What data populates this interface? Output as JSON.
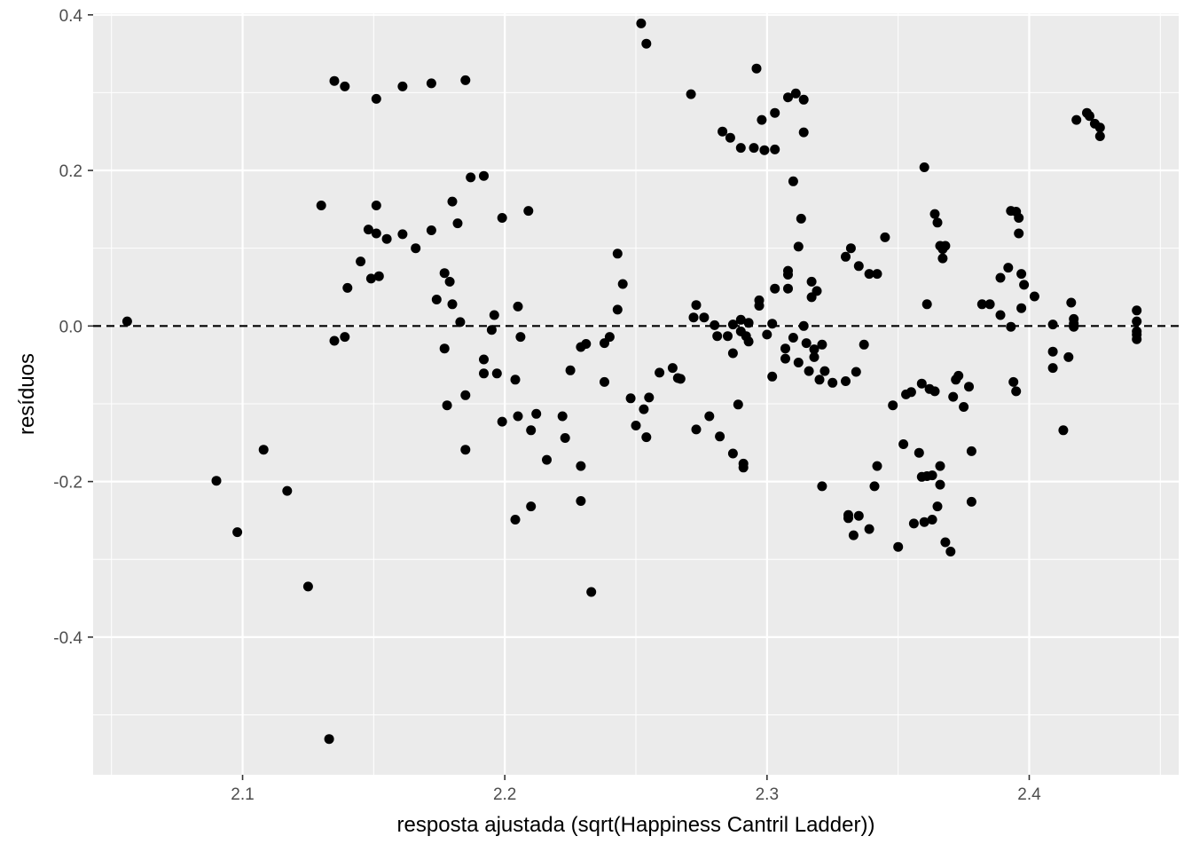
{
  "chart_data": {
    "type": "scatter",
    "xlabel": "resposta ajustada (sqrt(Happiness Cantril Ladder))",
    "ylabel": "resíduos",
    "xlim": [
      2.043,
      2.457
    ],
    "ylim": [
      -0.577,
      0.402
    ],
    "x_ticks": [
      2.1,
      2.2,
      2.3,
      2.4
    ],
    "x_tick_labels": [
      "2.1",
      "2.2",
      "2.3",
      "2.4"
    ],
    "y_ticks": [
      0.4,
      0.2,
      0.0,
      -0.2,
      -0.4
    ],
    "y_tick_labels": [
      "0.4",
      "0.2",
      "0.0",
      "-0.2",
      "-0.4"
    ],
    "grid": true,
    "reference_line": {
      "y": 0,
      "style": "dashed"
    },
    "colors": {
      "panel": "#ebebeb",
      "grid": "#ffffff",
      "points": "#000000",
      "reference_line": "#000000"
    },
    "points": [
      [
        2.056,
        0.006
      ],
      [
        2.09,
        -0.199
      ],
      [
        2.098,
        -0.265
      ],
      [
        2.108,
        -0.159
      ],
      [
        2.117,
        -0.212
      ],
      [
        2.125,
        -0.335
      ],
      [
        2.13,
        0.155
      ],
      [
        2.133,
        -0.531
      ],
      [
        2.135,
        0.315
      ],
      [
        2.135,
        -0.019
      ],
      [
        2.139,
        0.308
      ],
      [
        2.139,
        -0.014
      ],
      [
        2.14,
        0.049
      ],
      [
        2.145,
        0.083
      ],
      [
        2.148,
        0.124
      ],
      [
        2.149,
        0.061
      ],
      [
        2.151,
        0.292
      ],
      [
        2.151,
        0.119
      ],
      [
        2.151,
        0.155
      ],
      [
        2.152,
        0.064
      ],
      [
        2.155,
        0.112
      ],
      [
        2.161,
        0.118
      ],
      [
        2.161,
        0.308
      ],
      [
        2.166,
        0.1
      ],
      [
        2.172,
        0.312
      ],
      [
        2.172,
        0.123
      ],
      [
        2.174,
        0.034
      ],
      [
        2.177,
        0.068
      ],
      [
        2.177,
        -0.029
      ],
      [
        2.178,
        -0.102
      ],
      [
        2.179,
        0.057
      ],
      [
        2.18,
        0.16
      ],
      [
        2.18,
        0.028
      ],
      [
        2.182,
        0.132
      ],
      [
        2.183,
        0.005
      ],
      [
        2.185,
        0.316
      ],
      [
        2.185,
        -0.089
      ],
      [
        2.185,
        -0.159
      ],
      [
        2.187,
        0.191
      ],
      [
        2.192,
        0.193
      ],
      [
        2.192,
        -0.043
      ],
      [
        2.192,
        -0.061
      ],
      [
        2.195,
        -0.005
      ],
      [
        2.196,
        0.014
      ],
      [
        2.197,
        -0.061
      ],
      [
        2.199,
        -0.123
      ],
      [
        2.199,
        0.139
      ],
      [
        2.204,
        -0.069
      ],
      [
        2.204,
        -0.249
      ],
      [
        2.205,
        -0.116
      ],
      [
        2.205,
        0.025
      ],
      [
        2.206,
        -0.014
      ],
      [
        2.209,
        0.148
      ],
      [
        2.21,
        -0.134
      ],
      [
        2.21,
        -0.232
      ],
      [
        2.212,
        -0.113
      ],
      [
        2.216,
        -0.172
      ],
      [
        2.222,
        -0.116
      ],
      [
        2.223,
        -0.144
      ],
      [
        2.225,
        -0.057
      ],
      [
        2.229,
        -0.225
      ],
      [
        2.229,
        -0.18
      ],
      [
        2.229,
        -0.027
      ],
      [
        2.231,
        -0.023
      ],
      [
        2.233,
        -0.342
      ],
      [
        2.238,
        -0.022
      ],
      [
        2.238,
        -0.072
      ],
      [
        2.24,
        -0.014
      ],
      [
        2.243,
        0.093
      ],
      [
        2.243,
        0.021
      ],
      [
        2.245,
        0.054
      ],
      [
        2.248,
        -0.093
      ],
      [
        2.25,
        -0.128
      ],
      [
        2.252,
        0.389
      ],
      [
        2.253,
        -0.107
      ],
      [
        2.254,
        0.363
      ],
      [
        2.254,
        -0.143
      ],
      [
        2.255,
        -0.092
      ],
      [
        2.259,
        -0.06
      ],
      [
        2.264,
        -0.054
      ],
      [
        2.266,
        -0.067
      ],
      [
        2.267,
        -0.068
      ],
      [
        2.271,
        0.298
      ],
      [
        2.272,
        0.011
      ],
      [
        2.273,
        0.027
      ],
      [
        2.273,
        -0.133
      ],
      [
        2.276,
        0.011
      ],
      [
        2.278,
        -0.116
      ],
      [
        2.28,
        0.001
      ],
      [
        2.281,
        -0.013
      ],
      [
        2.282,
        -0.142
      ],
      [
        2.283,
        0.25
      ],
      [
        2.285,
        -0.013
      ],
      [
        2.286,
        0.242
      ],
      [
        2.287,
        -0.164
      ],
      [
        2.287,
        0.002
      ],
      [
        2.287,
        -0.035
      ],
      [
        2.289,
        -0.101
      ],
      [
        2.29,
        -0.007
      ],
      [
        2.29,
        0.229
      ],
      [
        2.29,
        0.008
      ],
      [
        2.291,
        -0.177
      ],
      [
        2.291,
        -0.182
      ],
      [
        2.292,
        -0.013
      ],
      [
        2.293,
        0.004
      ],
      [
        2.293,
        -0.02
      ],
      [
        2.295,
        0.229
      ],
      [
        2.296,
        0.331
      ],
      [
        2.297,
        0.033
      ],
      [
        2.297,
        0.026
      ],
      [
        2.298,
        0.265
      ],
      [
        2.299,
        0.226
      ],
      [
        2.3,
        -0.011
      ],
      [
        2.302,
        0.003
      ],
      [
        2.302,
        -0.065
      ],
      [
        2.303,
        0.227
      ],
      [
        2.303,
        0.048
      ],
      [
        2.303,
        0.274
      ],
      [
        2.307,
        -0.029
      ],
      [
        2.307,
        -0.042
      ],
      [
        2.308,
        0.294
      ],
      [
        2.308,
        0.071
      ],
      [
        2.308,
        0.048
      ],
      [
        2.308,
        0.066
      ],
      [
        2.31,
        0.186
      ],
      [
        2.31,
        -0.015
      ],
      [
        2.311,
        0.299
      ],
      [
        2.312,
        0.102
      ],
      [
        2.312,
        -0.047
      ],
      [
        2.313,
        0.138
      ],
      [
        2.314,
        0.249
      ],
      [
        2.314,
        0.291
      ],
      [
        2.314,
        0.0
      ],
      [
        2.315,
        -0.022
      ],
      [
        2.316,
        -0.058
      ],
      [
        2.317,
        0.057
      ],
      [
        2.317,
        0.037
      ],
      [
        2.318,
        -0.03
      ],
      [
        2.318,
        -0.04
      ],
      [
        2.319,
        0.045
      ],
      [
        2.32,
        -0.069
      ],
      [
        2.321,
        -0.206
      ],
      [
        2.321,
        -0.024
      ],
      [
        2.322,
        -0.058
      ],
      [
        2.325,
        -0.073
      ],
      [
        2.33,
        0.089
      ],
      [
        2.33,
        -0.071
      ],
      [
        2.331,
        -0.243
      ],
      [
        2.331,
        -0.247
      ],
      [
        2.332,
        0.1
      ],
      [
        2.333,
        -0.269
      ],
      [
        2.334,
        -0.059
      ],
      [
        2.335,
        0.077
      ],
      [
        2.335,
        -0.244
      ],
      [
        2.337,
        -0.024
      ],
      [
        2.339,
        0.067
      ],
      [
        2.339,
        -0.261
      ],
      [
        2.341,
        -0.206
      ],
      [
        2.342,
        -0.18
      ],
      [
        2.342,
        0.067
      ],
      [
        2.345,
        0.114
      ],
      [
        2.348,
        -0.102
      ],
      [
        2.35,
        -0.284
      ],
      [
        2.352,
        -0.152
      ],
      [
        2.353,
        -0.088
      ],
      [
        2.355,
        -0.085
      ],
      [
        2.356,
        -0.254
      ],
      [
        2.358,
        -0.163
      ],
      [
        2.359,
        -0.074
      ],
      [
        2.359,
        -0.194
      ],
      [
        2.36,
        0.204
      ],
      [
        2.36,
        -0.252
      ],
      [
        2.361,
        0.028
      ],
      [
        2.361,
        -0.193
      ],
      [
        2.362,
        -0.081
      ],
      [
        2.363,
        -0.192
      ],
      [
        2.363,
        -0.249
      ],
      [
        2.364,
        -0.084
      ],
      [
        2.364,
        0.144
      ],
      [
        2.365,
        0.133
      ],
      [
        2.365,
        -0.232
      ],
      [
        2.366,
        0.103
      ],
      [
        2.366,
        -0.204
      ],
      [
        2.366,
        -0.18
      ],
      [
        2.367,
        0.099
      ],
      [
        2.367,
        0.087
      ],
      [
        2.368,
        -0.278
      ],
      [
        2.368,
        0.103
      ],
      [
        2.37,
        -0.29
      ],
      [
        2.371,
        -0.091
      ],
      [
        2.372,
        -0.069
      ],
      [
        2.373,
        -0.064
      ],
      [
        2.375,
        -0.104
      ],
      [
        2.377,
        -0.078
      ],
      [
        2.378,
        -0.161
      ],
      [
        2.378,
        -0.226
      ],
      [
        2.382,
        0.028
      ],
      [
        2.385,
        0.028
      ],
      [
        2.389,
        0.062
      ],
      [
        2.389,
        0.014
      ],
      [
        2.392,
        0.075
      ],
      [
        2.393,
        -0.001
      ],
      [
        2.393,
        0.148
      ],
      [
        2.394,
        -0.072
      ],
      [
        2.395,
        0.147
      ],
      [
        2.395,
        -0.084
      ],
      [
        2.396,
        0.119
      ],
      [
        2.396,
        0.139
      ],
      [
        2.397,
        0.067
      ],
      [
        2.397,
        0.023
      ],
      [
        2.398,
        0.053
      ],
      [
        2.402,
        0.038
      ],
      [
        2.409,
        0.002
      ],
      [
        2.409,
        -0.033
      ],
      [
        2.409,
        -0.054
      ],
      [
        2.413,
        -0.134
      ],
      [
        2.415,
        -0.04
      ],
      [
        2.416,
        0.03
      ],
      [
        2.417,
        -0.001
      ],
      [
        2.417,
        0.009
      ],
      [
        2.417,
        0.003
      ],
      [
        2.418,
        0.265
      ],
      [
        2.422,
        0.274
      ],
      [
        2.423,
        0.27
      ],
      [
        2.425,
        0.26
      ],
      [
        2.427,
        0.255
      ],
      [
        2.427,
        0.244
      ],
      [
        2.441,
        0.02
      ],
      [
        2.441,
        0.006
      ],
      [
        2.441,
        -0.007
      ],
      [
        2.441,
        -0.011
      ],
      [
        2.441,
        -0.017
      ]
    ]
  }
}
